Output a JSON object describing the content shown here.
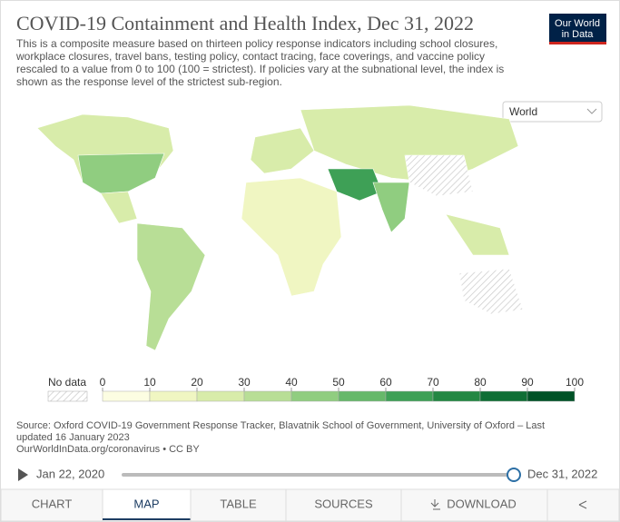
{
  "header": {
    "title": "COVID-19 Containment and Health Index, Dec 31, 2022",
    "subtitle": [
      "This is a composite measure based on thirteen policy response indicators including school closures,",
      "workplace closures, travel bans, testing policy, contact tracing, face coverings, and vaccine policy",
      "rescaled to a value from 0 to 100 (100 = strictest). If policies vary at the subnational level, the index is",
      "shown as the response level of the strictest sub-region."
    ],
    "logo": [
      "Our World",
      "in Data"
    ]
  },
  "selector": "World",
  "legend": {
    "no_data": "No data",
    "ticks": [
      0,
      10,
      20,
      30,
      40,
      50,
      60,
      70,
      80,
      90,
      100
    ],
    "colors": [
      "#fcfde2",
      "#f0f6c2",
      "#d8ecaa",
      "#b8de96",
      "#90cd80",
      "#66b86a",
      "#3ea056",
      "#238743",
      "#0f6e35",
      "#005226"
    ]
  },
  "source": [
    "Source: Oxford COVID-19 Government Response Tracker, Blavatnik School of Government, University of Oxford – Last",
    "updated 16 January 2023",
    "OurWorldInData.org/coronavirus • CC BY"
  ],
  "timeline": {
    "start": "Jan 22, 2020",
    "end": "Dec 31, 2022"
  },
  "tabs": [
    "CHART",
    "MAP",
    "TABLE",
    "SOURCES",
    "DOWNLOAD"
  ]
}
